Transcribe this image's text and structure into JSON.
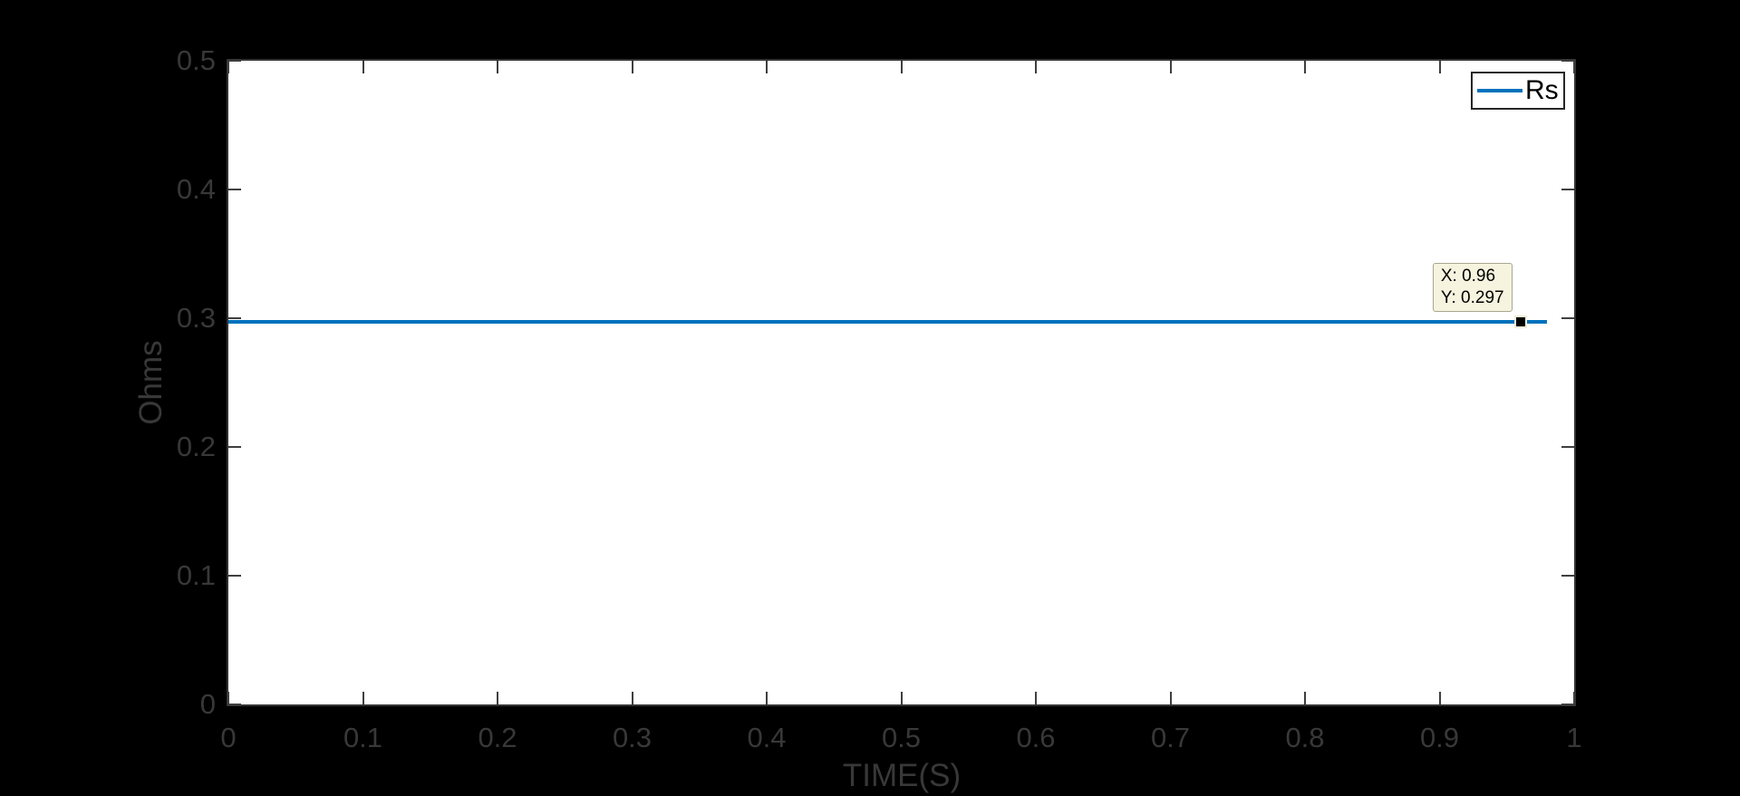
{
  "figure": {
    "xlabel": "TIME(S)",
    "ylabel": "Ohms"
  },
  "legend": {
    "position": "top-right",
    "entries": [
      {
        "label": "Rs",
        "color": "#0072bd"
      }
    ]
  },
  "datatip": {
    "line_x": "X: 0.96",
    "line_y": "Y: 0.297"
  },
  "colors": {
    "figure_background": "#000000",
    "plot_background": "#ffffff",
    "axis_text": "#383838",
    "tick_mark": "#3f3f3f",
    "axes_edge": "#333333",
    "line_blue": "#0072bd",
    "datatip_background": "#f6f3df",
    "datatip_border": "#a9a791",
    "datatip_text": "#000000",
    "legend_background": "#ffffff",
    "legend_border": "#262626",
    "marker_fill": "#000000",
    "marker_border": "#f0edd8"
  },
  "chart_data": {
    "type": "line",
    "title": "",
    "xlabel": "TIME(S)",
    "ylabel": "Ohms",
    "xlim": [
      0,
      1
    ],
    "ylim": [
      0,
      0.5
    ],
    "grid": false,
    "x_ticks": {
      "values": [
        0,
        0.1,
        0.2,
        0.3,
        0.4,
        0.5,
        0.6,
        0.7,
        0.8,
        0.9,
        1
      ],
      "labels": [
        "0",
        "0.1",
        "0.2",
        "0.3",
        "0.4",
        "0.5",
        "0.6",
        "0.7",
        "0.8",
        "0.9",
        "1"
      ]
    },
    "y_ticks": {
      "values": [
        0,
        0.1,
        0.2,
        0.3,
        0.4,
        0.5
      ],
      "labels": [
        "0",
        "0.1",
        "0.2",
        "0.3",
        "0.4",
        "0.5"
      ]
    },
    "legend": {
      "position": "top-right",
      "entries": [
        "Rs"
      ]
    },
    "series": [
      {
        "name": "Rs",
        "color": "#0072bd",
        "style": "solid",
        "constant_y": 0.297,
        "x_start": 0,
        "x_end": 0.98
      }
    ],
    "datatip": {
      "x": 0.96,
      "y": 0.297
    }
  }
}
